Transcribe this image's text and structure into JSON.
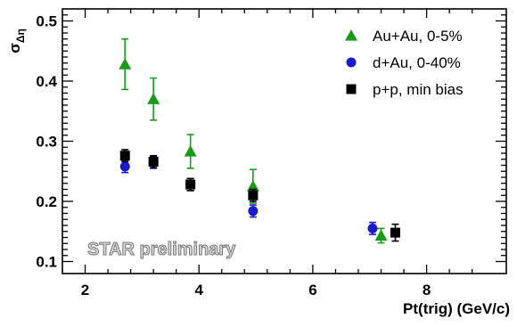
{
  "chart_data": {
    "type": "scatter",
    "xlabel": "Pt(trig) (GeV/c)",
    "ylabel": "σ",
    "ylabel_sub": "Δη",
    "xlim": [
      1.6,
      9.4
    ],
    "ylim": [
      0.08,
      0.52
    ],
    "x_ticks": [
      2,
      4,
      6,
      8
    ],
    "y_ticks": [
      0.1,
      0.2,
      0.3,
      0.4,
      0.5
    ],
    "x_tick_labels": [
      "2",
      "4",
      "6",
      "8"
    ],
    "y_tick_labels": [
      "0.1",
      "0.2",
      "0.3",
      "0.4",
      "0.5"
    ],
    "grid": false,
    "legend_position": "top-right",
    "annotation": "STAR preliminary",
    "series": [
      {
        "name": "Au+Au, 0-5%",
        "marker": "triangle",
        "color": "#1a9a1a",
        "x": [
          2.7,
          3.2,
          3.85,
          4.95,
          7.2
        ],
        "y": [
          0.428,
          0.37,
          0.283,
          0.225,
          0.143
        ],
        "err": [
          0.042,
          0.035,
          0.028,
          0.028,
          0.012
        ]
      },
      {
        "name": "d+Au, 0-40%",
        "marker": "circle",
        "color": "#1a1acc",
        "x": [
          2.7,
          3.2,
          3.85,
          4.95,
          7.05
        ],
        "y": [
          0.258,
          0.265,
          0.228,
          0.184,
          0.155
        ],
        "err": [
          0.01,
          0.01,
          0.01,
          0.01,
          0.01
        ]
      },
      {
        "name": "p+p, min bias",
        "marker": "square",
        "color": "#000000",
        "x": [
          2.7,
          3.2,
          3.85,
          4.95,
          7.45
        ],
        "y": [
          0.276,
          0.266,
          0.228,
          0.21,
          0.148
        ],
        "err": [
          0.01,
          0.01,
          0.01,
          0.01,
          0.014
        ]
      }
    ]
  }
}
